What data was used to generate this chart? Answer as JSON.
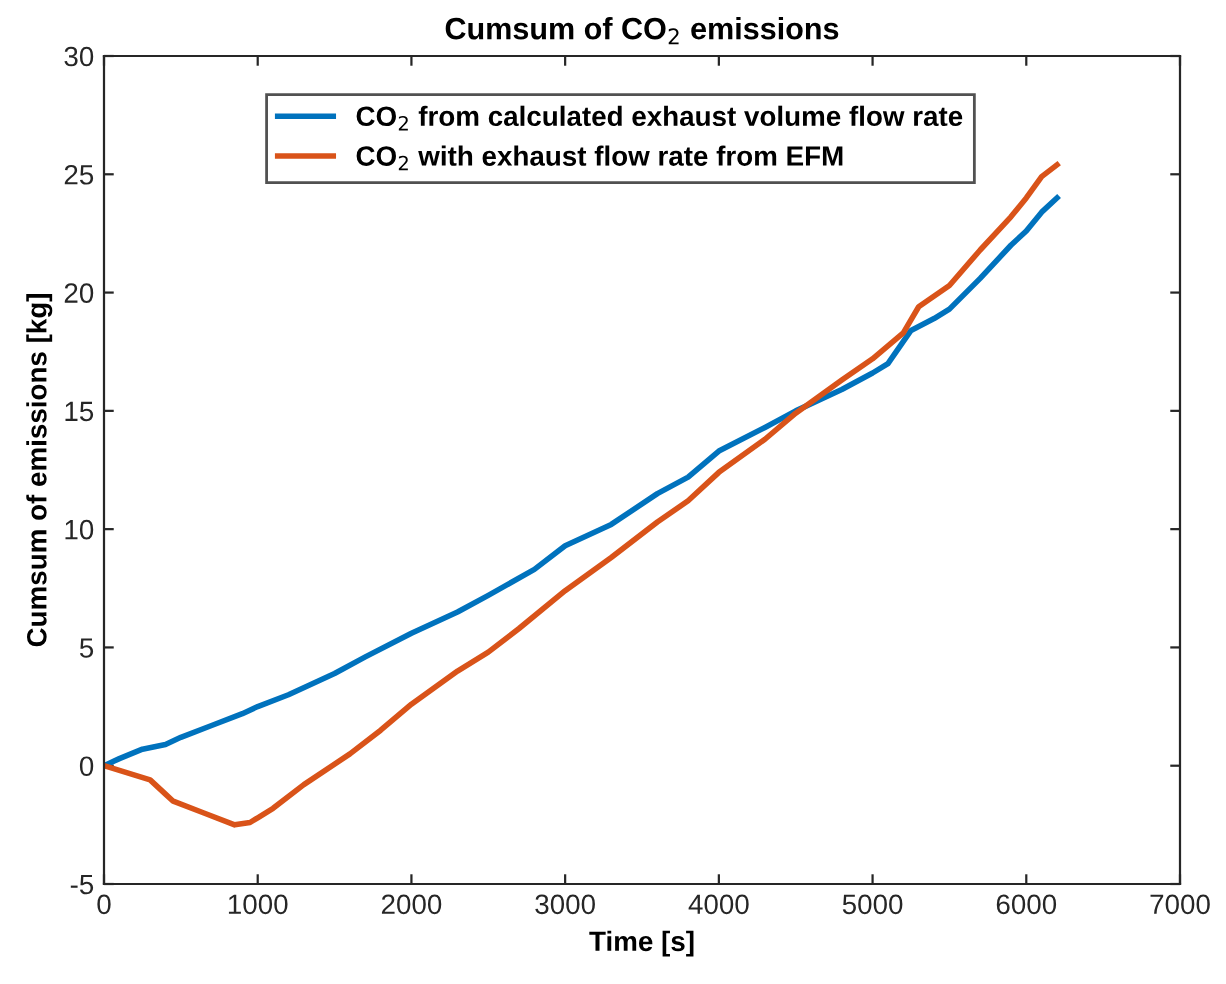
{
  "chart_data": {
    "type": "line",
    "title": "Cumsum of CO$_{2}$ emissions",
    "xlabel": "Time [s]",
    "ylabel": "Cumsum of emissions [kg]",
    "xlim": [
      0,
      7000
    ],
    "xticks": [
      0,
      1000,
      2000,
      3000,
      4000,
      5000,
      6000,
      7000
    ],
    "ylim": [
      -5,
      30
    ],
    "yticks": [
      -5,
      0,
      5,
      10,
      15,
      20,
      25,
      30
    ],
    "grid": false,
    "legend": "top",
    "line_style": "solid",
    "marker": "none",
    "series": [
      {
        "name": "CO$_{2}$ from calculated exhaust volume flow rate",
        "color": "#0072bd",
        "x": [
          0,
          100,
          250,
          400,
          500,
          700,
          900,
          1000,
          1200,
          1500,
          1700,
          2000,
          2300,
          2500,
          2800,
          3000,
          3300,
          3600,
          3800,
          4000,
          4300,
          4500,
          4800,
          5000,
          5100,
          5250,
          5400,
          5500,
          5700,
          5900,
          6000,
          6100,
          6200
        ],
        "values": [
          0,
          0.3,
          0.7,
          0.9,
          1.2,
          1.7,
          2.2,
          2.5,
          3.0,
          3.9,
          4.6,
          5.6,
          6.5,
          7.2,
          8.3,
          9.3,
          10.2,
          11.5,
          12.2,
          13.3,
          14.3,
          15.0,
          15.9,
          16.6,
          17.0,
          18.4,
          18.9,
          19.3,
          20.6,
          22.0,
          22.6,
          23.4,
          24.0
        ]
      },
      {
        "name": "CO$_{2}$ with exhaust flow rate from EFM",
        "color": "#d95319",
        "x": [
          0,
          100,
          300,
          400,
          450,
          650,
          850,
          950,
          1000,
          1100,
          1300,
          1600,
          1800,
          2000,
          2300,
          2500,
          2700,
          3000,
          3300,
          3600,
          3800,
          4000,
          4300,
          4500,
          4800,
          5000,
          5200,
          5300,
          5500,
          5700,
          5900,
          6000,
          6100,
          6200
        ],
        "values": [
          0,
          -0.2,
          -0.6,
          -1.2,
          -1.5,
          -2.0,
          -2.5,
          -2.4,
          -2.2,
          -1.8,
          -0.8,
          0.5,
          1.5,
          2.6,
          4.0,
          4.8,
          5.8,
          7.4,
          8.8,
          10.3,
          11.2,
          12.4,
          13.8,
          14.9,
          16.3,
          17.2,
          18.3,
          19.4,
          20.3,
          21.8,
          23.2,
          24.0,
          24.9,
          25.4
        ]
      }
    ]
  }
}
